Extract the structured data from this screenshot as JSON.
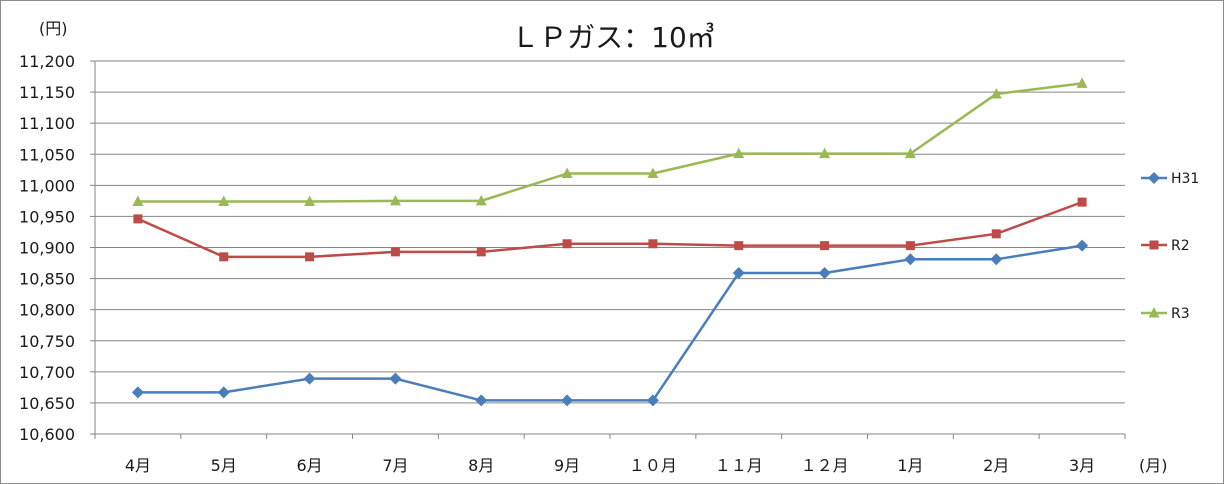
{
  "chart_data": {
    "type": "line",
    "title": "ＬＰガス：10㎥",
    "ylabel": "(円)",
    "xlabel": "(月)",
    "ylim": [
      10600,
      11200
    ],
    "ytick_step": 50,
    "ytick_labels": [
      "10,600",
      "10,650",
      "10,700",
      "10,750",
      "10,800",
      "10,850",
      "10,900",
      "10,950",
      "11,000",
      "11,050",
      "11,100",
      "11,150",
      "11,200"
    ],
    "categories": [
      "4月",
      "5月",
      "6月",
      "7月",
      "8月",
      "9月",
      "１０月",
      "１１月",
      "１２月",
      "1月",
      "2月",
      "3月"
    ],
    "grid": true,
    "legend_position": "right",
    "series": [
      {
        "name": "H31",
        "color": "#4a7ebb",
        "marker": "diamond",
        "values": [
          10667,
          10667,
          10689,
          10689,
          10654,
          10654,
          10654,
          10859,
          10859,
          10881,
          10881,
          10903
        ]
      },
      {
        "name": "R2",
        "color": "#be4b48",
        "marker": "square",
        "values": [
          10946,
          10885,
          10885,
          10893,
          10893,
          10906,
          10906,
          10903,
          10903,
          10903,
          10922,
          10973
        ]
      },
      {
        "name": "R3",
        "color": "#98b954",
        "marker": "triangle",
        "values": [
          10974,
          10974,
          10974,
          10975,
          10975,
          11019,
          11019,
          11051,
          11051,
          11051,
          11147,
          11164
        ]
      }
    ]
  }
}
